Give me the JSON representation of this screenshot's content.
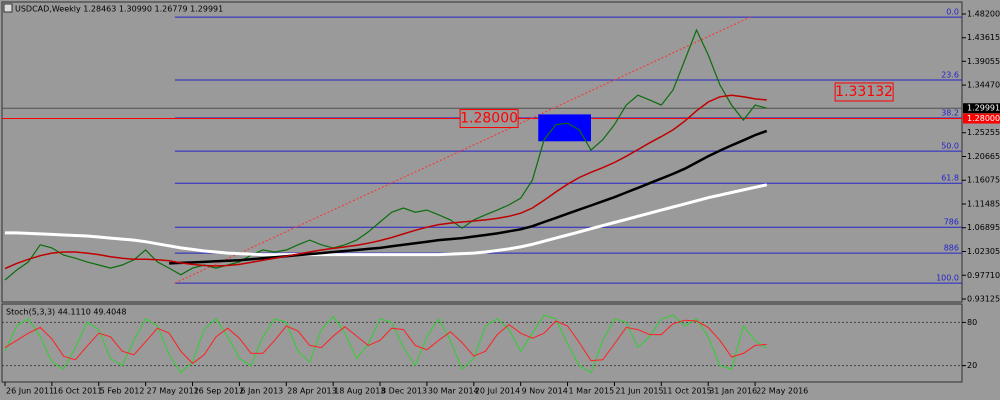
{
  "chart_data": [
    {
      "type": "line",
      "title": "USDCAD,Weekly  1.28463 1.30990 1.26779 1.29991",
      "categories": [
        "26 Jun 2011",
        null,
        null,
        null,
        "16 Oct 2011",
        null,
        null,
        null,
        "5 Feb 2012",
        null,
        null,
        null,
        "27 May 2012",
        null,
        null,
        null,
        "16 Sep 2012",
        null,
        null,
        null,
        "6 Jan 2013",
        null,
        null,
        null,
        "28 Apr 2013",
        null,
        null,
        null,
        "18 Aug 2013",
        null,
        null,
        null,
        "8 Dec 2013",
        null,
        null,
        null,
        "30 Mar 2014",
        null,
        null,
        null,
        "20 Jul 2014",
        null,
        null,
        null,
        "9 Nov 2014",
        null,
        null,
        null,
        "1 Mar 2015",
        null,
        null,
        null,
        "21 Jun 2015",
        null,
        null,
        null,
        "11 Oct 2015",
        null,
        null,
        null,
        "31 Jan 2016",
        null,
        null,
        null,
        "22 May 2016",
        null
      ],
      "series": [
        {
          "color": "#0b6e0b",
          "values": [
            0.968,
            0.987,
            1.003,
            1.036,
            1.03,
            1.016,
            1.01,
            1.003,
            0.997,
            0.991,
            0.997,
            1.007,
            1.026,
            1.003,
            0.991,
            0.978,
            0.991,
            0.997,
            0.991,
            0.997,
            1.003,
            1.016,
            1.026,
            1.022,
            1.026,
            1.036,
            1.045,
            1.036,
            1.03,
            1.036,
            1.045,
            1.061,
            1.08,
            1.099,
            1.107,
            1.099,
            1.103,
            1.094,
            1.084,
            1.068,
            1.084,
            1.094,
            1.103,
            1.113,
            1.126,
            1.161,
            1.239,
            1.268,
            1.271,
            1.258,
            1.219,
            1.239,
            1.268,
            1.306,
            1.325,
            1.316,
            1.306,
            1.335,
            1.393,
            1.451,
            1.403,
            1.345,
            1.306,
            1.277,
            1.306,
            1.3
          ]
        },
        {
          "color": "#ffffff",
          "values": [
            1.059,
            1.059,
            1.058,
            1.057,
            1.056,
            1.055,
            1.054,
            1.053,
            1.051,
            1.049,
            1.047,
            1.045,
            1.042,
            1.038,
            1.034,
            1.03,
            1.027,
            1.024,
            1.022,
            1.02,
            1.019,
            1.018,
            1.017,
            1.017,
            1.017,
            1.017,
            1.017,
            1.017,
            1.017,
            1.017,
            1.017,
            1.017,
            1.017,
            1.017,
            1.017,
            1.017,
            1.017,
            1.017,
            1.018,
            1.019,
            1.02,
            1.022,
            1.025,
            1.028,
            1.032,
            1.037,
            1.043,
            1.049,
            1.055,
            1.061,
            1.067,
            1.073,
            1.079,
            1.085,
            1.091,
            1.097,
            1.103,
            1.109,
            1.115,
            1.121,
            1.127,
            1.132,
            1.137,
            1.142,
            1.147,
            1.152
          ]
        },
        {
          "color": "#000000",
          "values": [
            null,
            null,
            null,
            null,
            null,
            null,
            null,
            null,
            null,
            null,
            null,
            null,
            null,
            null,
            1.0,
            1.001,
            1.002,
            1.003,
            1.004,
            1.005,
            1.006,
            1.008,
            1.01,
            1.012,
            1.014,
            1.016,
            1.018,
            1.02,
            1.022,
            1.024,
            1.026,
            1.028,
            1.03,
            1.033,
            1.036,
            1.039,
            1.042,
            1.045,
            1.047,
            1.049,
            1.052,
            1.055,
            1.058,
            1.062,
            1.066,
            1.072,
            1.08,
            1.088,
            1.096,
            1.104,
            1.112,
            1.12,
            1.128,
            1.137,
            1.146,
            1.155,
            1.164,
            1.173,
            1.183,
            1.195,
            1.207,
            1.218,
            1.228,
            1.238,
            1.248,
            1.256
          ]
        },
        {
          "color": "#c00000",
          "values": [
            0.99,
            1.0,
            1.008,
            1.015,
            1.02,
            1.022,
            1.022,
            1.02,
            1.017,
            1.013,
            1.01,
            1.008,
            1.008,
            1.007,
            1.005,
            1.001,
            0.998,
            0.996,
            0.995,
            0.996,
            0.998,
            1.002,
            1.006,
            1.01,
            1.014,
            1.018,
            1.022,
            1.026,
            1.029,
            1.032,
            1.035,
            1.039,
            1.044,
            1.05,
            1.057,
            1.064,
            1.07,
            1.075,
            1.078,
            1.08,
            1.082,
            1.084,
            1.087,
            1.091,
            1.097,
            1.107,
            1.122,
            1.138,
            1.153,
            1.166,
            1.176,
            1.185,
            1.195,
            1.207,
            1.22,
            1.233,
            1.245,
            1.258,
            1.275,
            1.295,
            1.312,
            1.322,
            1.325,
            1.322,
            1.318,
            1.316
          ]
        }
      ],
      "ylim": [
        0.9235,
        1.4994
      ],
      "yticks": [
        {
          "value": 1.482,
          "label": "1.48200"
        },
        1.43615,
        1.39055,
        {
          "value": 1.3447,
          "label": "1.34470"
        },
        1.25255,
        1.20665,
        1.16075,
        1.11485,
        1.06895,
        1.02305,
        {
          "value": 0.9771,
          "label": "0.97710"
        },
        0.93125
      ],
      "fibo": {
        "start_index": 14.5,
        "color": "#2424c8",
        "levels": [
          {
            "value": 1.476,
            "label": "0.0"
          },
          {
            "value": 1.3545,
            "label": "23.6"
          },
          {
            "value": 1.281,
            "label": "38.2"
          },
          {
            "value": 1.217,
            "label": "50.0"
          },
          {
            "value": 1.155,
            "label": "61.8"
          },
          {
            "value": 1.07,
            "label": "786"
          },
          {
            "value": 1.02,
            "label": "886"
          },
          {
            "value": 0.962,
            "label": "100.0"
          }
        ]
      },
      "hlines": [
        {
          "value": 1.29991,
          "color": "#505050"
        },
        {
          "value": 1.28,
          "color": "#ff0000"
        }
      ],
      "axis_markers": [
        {
          "value": 1.29991,
          "label": "1.29991",
          "color": "#000000"
        },
        {
          "value": 1.28,
          "label": "1.28000",
          "color": "#ff0000"
        }
      ],
      "price_labels": [
        {
          "value": 1.28,
          "label": "1.28000",
          "at_index": 39
        },
        {
          "value": 1.33132,
          "label": "1.33132",
          "at_index": 71
        }
      ],
      "rectangle": {
        "x": [
          45.5,
          50
        ],
        "ymin": 1.236,
        "ymax": 1.288,
        "color": "#0000ff"
      },
      "trendline": {
        "x": [
          14.5,
          63.6
        ],
        "y": [
          0.962,
          1.476
        ],
        "color": "#ff3030"
      }
    },
    {
      "type": "line",
      "title": "Stoch(5,3,3) 44.1110 49.4048",
      "series": [
        {
          "color": "#30d030",
          "values": [
            40,
            75,
            85,
            60,
            25,
            15,
            45,
            80,
            70,
            30,
            20,
            55,
            85,
            75,
            35,
            10,
            25,
            70,
            85,
            60,
            30,
            20,
            60,
            85,
            80,
            40,
            25,
            70,
            88,
            65,
            30,
            50,
            85,
            80,
            45,
            20,
            60,
            85,
            55,
            15,
            30,
            75,
            85,
            70,
            40,
            65,
            90,
            85,
            50,
            20,
            10,
            55,
            85,
            80,
            45,
            60,
            85,
            90,
            75,
            85,
            60,
            20,
            15,
            75,
            55,
            44.111
          ]
        },
        {
          "color": "#ff2020",
          "values": [
            45,
            55,
            65,
            73,
            57,
            33,
            28,
            47,
            65,
            60,
            40,
            35,
            53,
            72,
            65,
            40,
            23,
            35,
            60,
            72,
            58,
            37,
            37,
            55,
            75,
            68,
            48,
            45,
            61,
            74,
            61,
            48,
            55,
            72,
            70,
            48,
            42,
            55,
            67,
            52,
            33,
            40,
            63,
            77,
            65,
            58,
            65,
            82,
            75,
            52,
            27,
            28,
            50,
            73,
            70,
            63,
            63,
            78,
            83,
            82,
            73,
            55,
            32,
            37,
            48,
            49.4048
          ]
        }
      ],
      "ylim": [
        0,
        100
      ],
      "yticks": [
        20,
        80
      ]
    }
  ]
}
